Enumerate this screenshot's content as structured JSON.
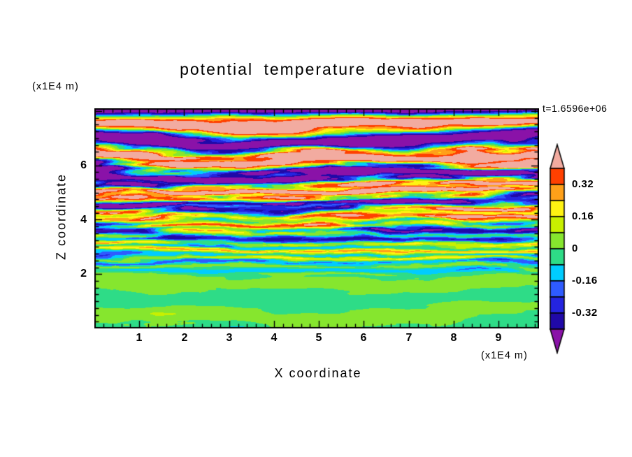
{
  "figure": {
    "title": "potential temperature deviation",
    "timestamp": "t=1.6596e+06",
    "x_axis": {
      "label": "X coordinate",
      "unit": "(x1E4 m)",
      "ticks": [
        "1",
        "2",
        "3",
        "4",
        "5",
        "6",
        "7",
        "8",
        "9"
      ]
    },
    "z_axis": {
      "label": "Z coordinate",
      "unit": "(x1E4 m)",
      "ticks": [
        "6",
        "4",
        "2"
      ]
    }
  },
  "colorbar": {
    "labels": [
      "0.32",
      "0.16",
      "0",
      "-0.16",
      "-0.32"
    ]
  },
  "chart_data": {
    "type": "heatmap",
    "title": "potential temperature deviation",
    "xlabel": "X coordinate",
    "ylabel": "Z coordinate",
    "x_unit_x1e4_m": true,
    "z_unit_x1e4_m": true,
    "time_annotation": "t=1.6596e+06",
    "xlim": [
      0,
      9.9
    ],
    "zlim": [
      0,
      8.1
    ],
    "x_major_ticks": [
      1,
      2,
      3,
      4,
      5,
      6,
      7,
      8,
      9
    ],
    "x_minor_step": 0.2,
    "z_major_ticks": [
      2,
      4,
      6
    ],
    "z_minor_step": 0.25,
    "colorbar_tick_values": [
      0.32,
      0.16,
      0,
      -0.16,
      -0.32
    ],
    "levels": [
      -0.4,
      -0.32,
      -0.24,
      -0.16,
      -0.08,
      0,
      0.08,
      0.16,
      0.24,
      0.32,
      0.4
    ],
    "palette": [
      "#8A12A8",
      "#2009A8",
      "#2424E0",
      "#2E5BFF",
      "#00CCFF",
      "#2EDC87",
      "#86E62E",
      "#C8F000",
      "#FFF312",
      "#FFA019",
      "#FF4000",
      "#F2ABA0"
    ],
    "frame_color": "#000000",
    "field_description": "Stratified turbulent contour field: smooth green layer below z=2, thin horizontally-stretched mixed stripes (cyan/blue/yellow/orange) at mid-levels, strong alternating salmon, red, navy and purple bands aloft with a dark purple band at the top edge."
  }
}
